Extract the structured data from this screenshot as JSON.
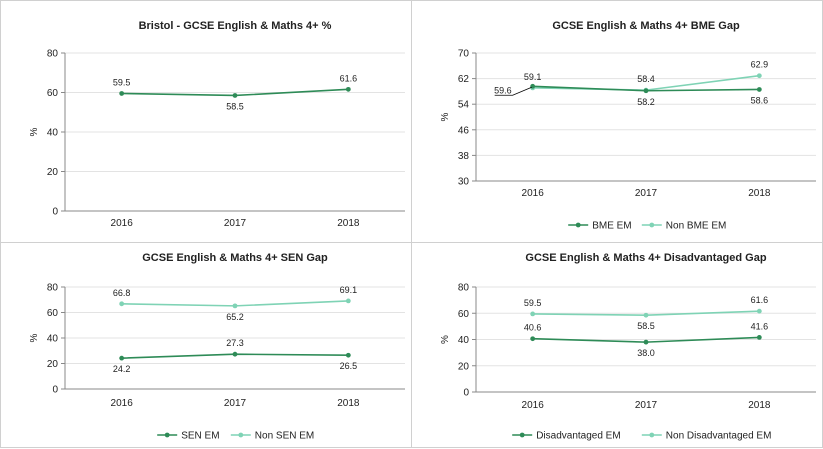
{
  "colors": {
    "dark": "#2e8b57",
    "light": "#7fd3b5",
    "axis": "#888888",
    "grid": "#e3e3e3",
    "border": "#d0d0d0"
  },
  "chart_data": [
    {
      "type": "line",
      "title": "Bristol - GCSE English & Maths 4+ %",
      "ylabel": "%",
      "categories": [
        "2016",
        "2017",
        "2018"
      ],
      "ylim": [
        0,
        80
      ],
      "yticks": [
        "0",
        "20",
        "40",
        "60",
        "80"
      ],
      "series": [
        {
          "name": "",
          "color": "dark",
          "values": [
            59.5,
            58.5,
            61.6
          ],
          "labels": [
            "59.5",
            "58.5",
            "61.6"
          ],
          "label_pos": [
            "above",
            "below",
            "above"
          ]
        }
      ],
      "legend": "none"
    },
    {
      "type": "line",
      "title": "GCSE English & Maths 4+ BME Gap",
      "ylabel": "%",
      "categories": [
        "2016",
        "2017",
        "2018"
      ],
      "ylim": [
        30,
        70
      ],
      "yticks": [
        "30",
        "38",
        "46",
        "54",
        "62",
        "70"
      ],
      "series": [
        {
          "name": "BME EM",
          "color": "dark",
          "values": [
            59.6,
            58.2,
            58.6
          ],
          "labels": [
            "59.6",
            "58.2",
            "58.6"
          ],
          "label_pos": [
            "leader",
            "below",
            "below"
          ]
        },
        {
          "name": "Non BME EM",
          "color": "light",
          "values": [
            59.1,
            58.4,
            62.9
          ],
          "labels": [
            "59.1",
            "58.4",
            "62.9"
          ],
          "label_pos": [
            "above",
            "above",
            "above"
          ]
        }
      ],
      "legend": "bottom"
    },
    {
      "type": "line",
      "title": "GCSE English & Maths 4+ SEN Gap",
      "ylabel": "%",
      "categories": [
        "2016",
        "2017",
        "2018"
      ],
      "ylim": [
        0,
        80
      ],
      "yticks": [
        "0",
        "20",
        "40",
        "60",
        "80"
      ],
      "series": [
        {
          "name": "SEN EM",
          "color": "dark",
          "values": [
            24.2,
            27.3,
            26.5
          ],
          "labels": [
            "24.2",
            "27.3",
            "26.5"
          ],
          "label_pos": [
            "below",
            "above",
            "below"
          ]
        },
        {
          "name": "Non SEN EM",
          "color": "light",
          "values": [
            66.8,
            65.2,
            69.1
          ],
          "labels": [
            "66.8",
            "65.2",
            "69.1"
          ],
          "label_pos": [
            "above",
            "below",
            "above"
          ]
        }
      ],
      "legend": "bottom"
    },
    {
      "type": "line",
      "title": "GCSE English & Maths 4+ Disadvantaged Gap",
      "ylabel": "%",
      "categories": [
        "2016",
        "2017",
        "2018"
      ],
      "ylim": [
        0,
        80
      ],
      "yticks": [
        "0",
        "20",
        "40",
        "60",
        "80"
      ],
      "series": [
        {
          "name": "Disadvantaged EM",
          "color": "dark",
          "values": [
            40.6,
            38.0,
            41.6
          ],
          "labels": [
            "40.6",
            "38.0",
            "41.6"
          ],
          "label_pos": [
            "above",
            "below",
            "above"
          ]
        },
        {
          "name": "Non Disadvantaged EM",
          "color": "light",
          "values": [
            59.5,
            58.5,
            61.6
          ],
          "labels": [
            "59.5",
            "58.5",
            "61.6"
          ],
          "label_pos": [
            "above",
            "below",
            "above"
          ]
        }
      ],
      "legend": "bottom"
    }
  ]
}
